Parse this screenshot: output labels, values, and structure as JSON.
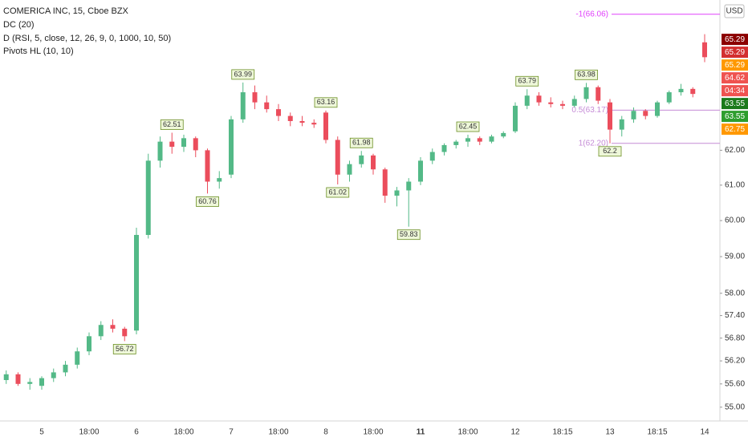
{
  "chart_data": {
    "type": "candlestick",
    "title": "COMERICA INC, 15, Cboe BZX",
    "indicators": [
      "DC (20)",
      "D (RSI, 5, close, 12, 26, 9, 0, 1000, 10, 50)",
      "Pivots HL (10, 10)"
    ],
    "currency": "USD",
    "log_scale": true,
    "grid": false,
    "up_color": "#53b987",
    "down_color": "#eb4d5c",
    "ylim": [
      54.75,
      66.5
    ],
    "yticks": [
      {
        "value": 55,
        "label": "55.00"
      },
      {
        "value": 55.6,
        "label": "55.60"
      },
      {
        "value": 56.2,
        "label": "56.20"
      },
      {
        "value": 56.8,
        "label": "56.80"
      },
      {
        "value": 57.4,
        "label": "57.40"
      },
      {
        "value": 58,
        "label": "58.00"
      },
      {
        "value": 59,
        "label": "59.00"
      },
      {
        "value": 60,
        "label": "60.00"
      },
      {
        "value": 61,
        "label": "61.00"
      },
      {
        "value": 62,
        "label": "62.00"
      }
    ],
    "categories": [
      null,
      null,
      null,
      "5",
      null,
      null,
      null,
      "18:00",
      null,
      null,
      null,
      "6",
      null,
      null,
      null,
      "18:00",
      null,
      null,
      null,
      "7",
      null,
      null,
      null,
      "18:00",
      null,
      null,
      null,
      "8",
      null,
      null,
      null,
      "18:00",
      null,
      null,
      null,
      "11",
      null,
      null,
      null,
      "18:00",
      null,
      null,
      null,
      "12",
      null,
      null,
      null,
      "18:15",
      null,
      null,
      null,
      "13",
      null,
      null,
      null,
      "18:15",
      null,
      null,
      null,
      "14"
    ],
    "open": [
      55.7,
      55.85,
      55.6,
      55.55,
      55.75,
      55.9,
      56.1,
      56.45,
      56.85,
      57.15,
      57.05,
      57.0,
      59.6,
      61.7,
      62.25,
      62.1,
      62.35,
      62.0,
      61.1,
      61.3,
      62.9,
      63.7,
      63.4,
      63.2,
      63.0,
      62.85,
      62.8,
      63.1,
      62.3,
      61.3,
      61.6,
      61.85,
      61.45,
      60.7,
      60.85,
      61.1,
      61.7,
      61.95,
      62.15,
      62.25,
      62.35,
      62.25,
      62.4,
      62.55,
      63.3,
      63.6,
      63.4,
      63.35,
      63.3,
      63.5,
      63.85,
      63.4,
      62.6,
      62.9,
      63.15,
      63.0,
      63.4,
      63.7,
      63.8,
      65.2
    ],
    "high": [
      55.95,
      55.9,
      55.75,
      55.8,
      56.0,
      56.2,
      56.55,
      56.95,
      57.25,
      57.3,
      57.1,
      59.8,
      61.9,
      62.4,
      62.51,
      62.45,
      62.4,
      62.05,
      61.4,
      63.0,
      63.99,
      63.9,
      63.6,
      63.35,
      63.1,
      63.0,
      62.9,
      63.16,
      62.4,
      61.7,
      61.98,
      61.9,
      61.5,
      60.95,
      61.2,
      61.8,
      62.05,
      62.2,
      62.3,
      62.45,
      62.4,
      62.45,
      62.55,
      63.4,
      63.79,
      63.7,
      63.55,
      63.45,
      63.6,
      63.98,
      63.9,
      63.5,
      63.0,
      63.25,
      63.2,
      63.45,
      63.75,
      63.95,
      63.85,
      65.45
    ],
    "low": [
      55.6,
      55.55,
      55.45,
      55.45,
      55.65,
      55.8,
      56.0,
      56.35,
      56.75,
      56.95,
      56.72,
      56.9,
      59.5,
      61.5,
      61.9,
      61.95,
      61.8,
      60.76,
      60.9,
      61.2,
      62.8,
      63.2,
      63.1,
      62.85,
      62.7,
      62.7,
      62.65,
      62.2,
      61.02,
      61.1,
      61.5,
      61.3,
      60.5,
      60.4,
      59.83,
      61.0,
      61.6,
      61.85,
      62.05,
      62.1,
      62.15,
      62.2,
      62.35,
      62.5,
      63.2,
      63.3,
      63.25,
      63.2,
      63.25,
      63.4,
      63.35,
      62.2,
      62.4,
      62.8,
      62.9,
      62.95,
      63.35,
      63.6,
      63.55,
      64.6
    ],
    "close": [
      55.85,
      55.6,
      55.65,
      55.75,
      55.9,
      56.1,
      56.45,
      56.85,
      57.15,
      57.05,
      56.85,
      59.6,
      61.7,
      62.25,
      62.1,
      62.35,
      62.0,
      61.1,
      61.2,
      62.9,
      63.7,
      63.4,
      63.2,
      63.0,
      62.85,
      62.8,
      62.75,
      62.3,
      61.3,
      61.6,
      61.85,
      61.45,
      60.7,
      60.85,
      61.1,
      61.7,
      61.95,
      62.15,
      62.25,
      62.35,
      62.25,
      62.4,
      62.5,
      63.3,
      63.6,
      63.4,
      63.35,
      63.3,
      63.5,
      63.85,
      63.45,
      62.6,
      62.9,
      63.15,
      63.0,
      63.4,
      63.7,
      63.8,
      63.65,
      64.75
    ],
    "pivots": [
      {
        "at": 10,
        "value": 56.72,
        "kind": "low"
      },
      {
        "at": 14,
        "value": 62.51,
        "kind": "high"
      },
      {
        "at": 17,
        "value": 60.76,
        "kind": "low"
      },
      {
        "at": 20,
        "value": 63.99,
        "kind": "high"
      },
      {
        "at": 27,
        "value": 63.16,
        "kind": "high"
      },
      {
        "at": 28,
        "value": 61.02,
        "kind": "low"
      },
      {
        "at": 30,
        "value": 61.98,
        "kind": "high"
      },
      {
        "at": 34,
        "value": 59.83,
        "kind": "low"
      },
      {
        "at": 39,
        "value": 62.45,
        "kind": "high"
      },
      {
        "at": 44,
        "value": 63.79,
        "kind": "high"
      },
      {
        "at": 49,
        "value": 63.98,
        "kind": "high"
      },
      {
        "at": 51,
        "value": 62.2,
        "kind": "low"
      }
    ],
    "levels": [
      {
        "label": "-1(66.06)",
        "value": 66.06,
        "color": "#e040fb"
      },
      {
        "label": "0.5(63.17)",
        "value": 63.17,
        "color": "#c58bd6"
      },
      {
        "label": "1(62.20)",
        "value": 62.2,
        "color": "#c58bd6"
      }
    ],
    "price_labels": [
      {
        "value": 65.29,
        "color": "#8b0000"
      },
      {
        "value": 65.29,
        "color": "#d32f2f"
      },
      {
        "value": 65.29,
        "color": "#ff9800"
      },
      {
        "value": 64.62,
        "color": "#ef5350"
      },
      {
        "value": 63.55,
        "color": "#1b7a1b"
      },
      {
        "value": 63.55,
        "color": "#2e9e2e"
      },
      {
        "value": 62.75,
        "color": "#ff9800"
      }
    ],
    "countdown": "04:34"
  }
}
